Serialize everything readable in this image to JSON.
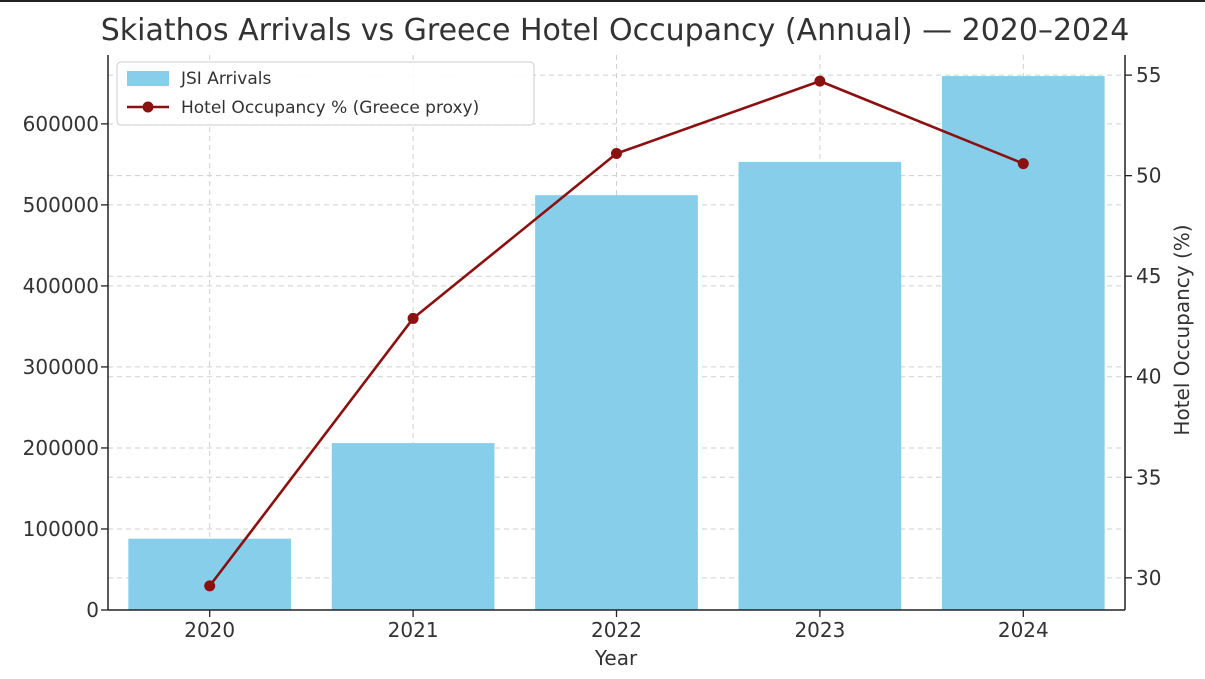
{
  "chart_data": {
    "type": "bar",
    "title": "Skiathos Arrivals vs Greece Hotel Occupancy (Annual) — 2020–2024",
    "xlabel": "Year",
    "ylabel": "",
    "y2label": "Hotel Occupancy (%)",
    "categories": [
      "2020",
      "2021",
      "2022",
      "2023",
      "2024"
    ],
    "series": [
      {
        "name": "JSI Arrivals",
        "type": "bar",
        "axis": "left",
        "color": "#87CEEB",
        "values": [
          88000,
          206000,
          512000,
          553000,
          659000
        ]
      },
      {
        "name": "Hotel Occupancy % (Greece proxy)",
        "type": "line",
        "axis": "right",
        "color": "#8B1010",
        "marker": "circle",
        "values": [
          29.6,
          42.9,
          51.1,
          54.7,
          50.6
        ]
      }
    ],
    "ylim": [
      0,
      685000
    ],
    "y2lim": [
      28.4,
      56.0
    ],
    "yticks": [
      0,
      100000,
      200000,
      300000,
      400000,
      500000,
      600000
    ],
    "y2ticks": [
      30,
      35,
      40,
      45,
      50,
      55
    ],
    "grid": true,
    "legend_position": "top-left"
  }
}
